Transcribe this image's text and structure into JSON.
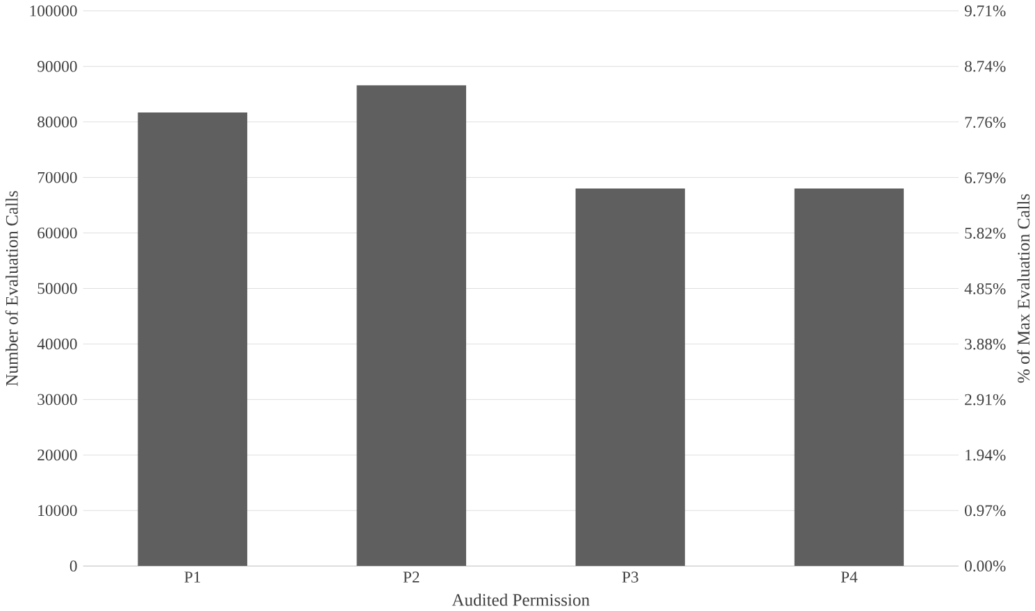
{
  "chart_data": {
    "type": "bar",
    "xlabel": "Audited Permission",
    "ylabel": "Number of Evaluation Calls",
    "y2label": "% of Max Evaluation Calls",
    "categories": [
      "P1",
      "P2",
      "P3",
      "P4"
    ],
    "values": [
      81700,
      86600,
      68000,
      68000
    ],
    "color": "#5f5f5f",
    "ylim": [
      0,
      100000
    ],
    "yticks": [
      0,
      10000,
      20000,
      30000,
      40000,
      50000,
      60000,
      70000,
      80000,
      90000,
      100000
    ],
    "y2lim": [
      0,
      9.71
    ],
    "y2ticks": [
      {
        "value": 0,
        "label": "0.00%"
      },
      {
        "value": 0.97,
        "label": "0.97%"
      },
      {
        "value": 1.94,
        "label": "1.94%"
      },
      {
        "value": 2.91,
        "label": "2.91%"
      },
      {
        "value": 3.88,
        "label": "3.88%"
      },
      {
        "value": 4.85,
        "label": "4.85%"
      },
      {
        "value": 5.82,
        "label": "5.82%"
      },
      {
        "value": 6.79,
        "label": "6.79%"
      },
      {
        "value": 7.76,
        "label": "7.76%"
      },
      {
        "value": 8.74,
        "label": "8.74%"
      },
      {
        "value": 9.71,
        "label": "9.71%"
      }
    ],
    "grid": "y"
  }
}
